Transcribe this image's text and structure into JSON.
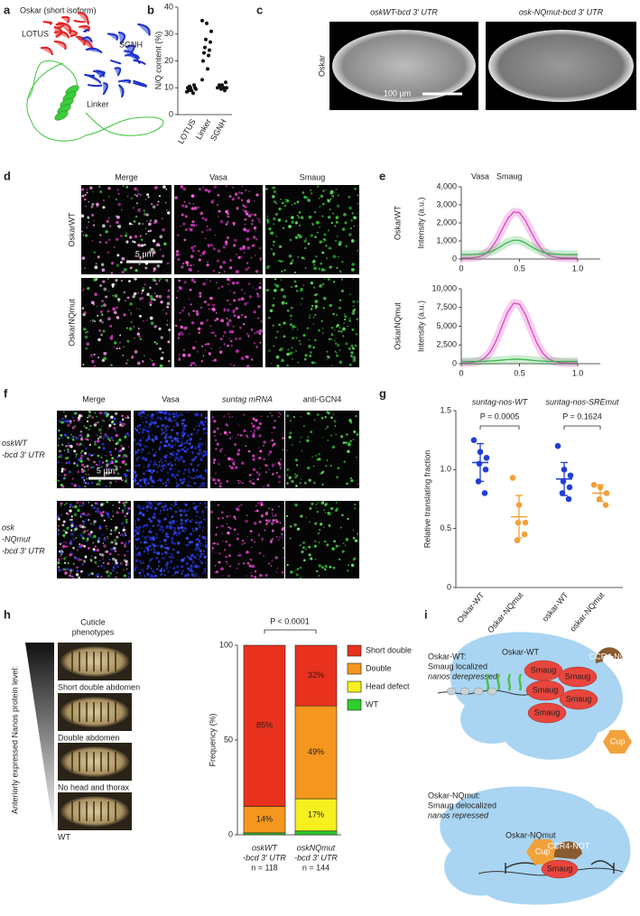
{
  "panel_labels": [
    "a",
    "b",
    "c",
    "d",
    "e",
    "f",
    "g",
    "h",
    "i"
  ],
  "panel_a": {
    "title": "Oskar (short isoform)",
    "domains": [
      "LOTUS",
      "SGNH",
      "Linker"
    ]
  },
  "panel_c": {
    "columns": [
      "oskWT-bcd 3′ UTR",
      "osk-NQmut-bcd 3′ UTR"
    ],
    "stain": "Oskar",
    "scale_bar": "100 µm"
  },
  "panel_d": {
    "columns": [
      "Merge",
      "Vasa",
      "Smaug"
    ],
    "rows": [
      "OskarWT",
      "OskarNQmut"
    ],
    "scale_bar": "5 µm"
  },
  "panel_f": {
    "columns": [
      "Merge",
      "Vasa",
      "suntag mRNA",
      "anti-GCN4"
    ],
    "rows": [
      [
        "oskWT",
        "-bcd 3′ UTR"
      ],
      [
        "osk",
        "-NQmut",
        "-bcd 3′ UTR"
      ]
    ],
    "scale_bar": "5 µm"
  },
  "panel_h": {
    "header": [
      "Cuticle",
      "phenotypes"
    ],
    "phenotypes": [
      "Short double abdomen",
      "Double abdomen",
      "No head and thorax",
      "WT"
    ],
    "gradient_label": "Anteriorly expressed Nanos protein level:"
  },
  "panel_i": {
    "wt_text": [
      "Oskar-WT:",
      "Smaug localized",
      "nanos derepressed"
    ],
    "wt_blob": "Oskar-WT",
    "wt_smaug": [
      "Smaug",
      "Smaug",
      "Smaug",
      "Smaug",
      "Smaug"
    ],
    "wt_ccr4": "CCR4-NOT",
    "wt_cup": "Cup",
    "mut_text": [
      "Oskar-NQmut:",
      "Smaug delocalized",
      "nanos repressed"
    ],
    "mut_blob": "Oskar-NQmut",
    "mut_cup": "Cup",
    "mut_ccr4": "CCR4-NOT",
    "mut_smaug": "Smaug"
  },
  "chart_data": [
    {
      "type": "strip",
      "ylabel": "N/Q content (%)",
      "categories": [
        "LOTUS",
        "Linker",
        "SGNH"
      ],
      "color": "#111111",
      "values": [
        [
          8.5,
          9,
          9.5,
          10,
          10,
          10.5,
          11,
          9,
          8,
          10
        ],
        [
          35,
          34,
          31,
          28,
          27,
          25,
          24,
          23,
          22,
          20,
          17,
          13
        ],
        [
          10,
          11,
          10,
          9.5,
          12,
          10.5,
          9,
          11,
          10
        ]
      ],
      "ylim": [
        0,
        40
      ],
      "yticks": [
        0,
        10,
        20,
        30,
        40
      ]
    },
    {
      "type": "line",
      "side_label": "OskarWT",
      "ylabel": "Intensity (a.u.)",
      "x": [
        0,
        0.05,
        0.1,
        0.15,
        0.2,
        0.25,
        0.3,
        0.35,
        0.4,
        0.45,
        0.5,
        0.55,
        0.6,
        0.65,
        0.7,
        0.75,
        0.8,
        0.85,
        0.9,
        0.95,
        1
      ],
      "series": [
        {
          "name": "Vasa",
          "color": "#e03cbf",
          "values": [
            50,
            60,
            70,
            120,
            260,
            530,
            1000,
            1630,
            2240,
            2610,
            2570,
            2130,
            1500,
            900,
            460,
            220,
            110,
            70,
            50,
            50,
            50
          ]
        },
        {
          "name": "Smaug",
          "color": "#36b34a",
          "values": [
            250,
            250,
            260,
            270,
            310,
            400,
            540,
            740,
            930,
            1040,
            1030,
            890,
            690,
            510,
            380,
            300,
            270,
            260,
            250,
            250,
            250
          ]
        }
      ],
      "xlim": [
        0,
        1
      ],
      "xticks": [
        0,
        0.5,
        {
          "value": 1,
          "label": "1.0"
        }
      ],
      "ylim": [
        0,
        4000
      ],
      "yticks": [
        0,
        {
          "value": 1000,
          "label": "1,000"
        },
        {
          "value": 2000,
          "label": "2,000"
        },
        {
          "value": 3000,
          "label": "3,000"
        },
        {
          "value": 4000,
          "label": "4,000"
        }
      ]
    },
    {
      "type": "line",
      "side_label": "OskarNQmut",
      "ylabel": "Intensity (a.u.)",
      "x": [
        0,
        0.05,
        0.1,
        0.15,
        0.2,
        0.25,
        0.3,
        0.35,
        0.4,
        0.45,
        0.5,
        0.55,
        0.6,
        0.65,
        0.7,
        0.75,
        0.8,
        0.85,
        0.9,
        0.95,
        1
      ],
      "series": [
        {
          "name": "Vasa",
          "color": "#e03cbf",
          "values": [
            100,
            120,
            170,
            330,
            740,
            1610,
            3070,
            5020,
            6940,
            8090,
            7950,
            6590,
            4600,
            2730,
            1390,
            630,
            290,
            150,
            110,
            100,
            100
          ]
        },
        {
          "name": "Smaug",
          "color": "#36b34a",
          "values": [
            300,
            300,
            300,
            310,
            320,
            360,
            410,
            480,
            550,
            600,
            590,
            540,
            470,
            400,
            350,
            320,
            310,
            300,
            300,
            300,
            300
          ]
        }
      ],
      "xlim": [
        0,
        1
      ],
      "xticks": [
        0,
        0.5,
        {
          "value": 1,
          "label": "1.0"
        }
      ],
      "ylim": [
        0,
        10000
      ],
      "yticks": [
        0,
        {
          "value": 2500,
          "label": "2,500"
        },
        {
          "value": 5000,
          "label": "5,000"
        },
        {
          "value": 7500,
          "label": "7,500"
        },
        {
          "value": 10000,
          "label": "10,000"
        }
      ]
    },
    {
      "type": "strip_mean",
      "ylabel": "Relative translating fraction",
      "groups": [
        "suntag-nos-WT",
        "suntag-nos-SREmut"
      ],
      "p_values": [
        "P = 0.0005",
        "P = 0.1624"
      ],
      "categories": [
        "Oskar-WT",
        "Oskar-NQmut",
        "oskar-WT",
        "oskar-NQmut"
      ],
      "colors": [
        "#1f3fd6",
        "#f2a23a",
        "#1f3fd6",
        "#f2a23a"
      ],
      "values": [
        [
          1.25,
          1.15,
          1.1,
          1.05,
          1.0,
          0.9,
          0.8
        ],
        [
          0.93,
          0.7,
          0.55,
          0.55,
          0.45,
          0.4
        ],
        [
          1.2,
          1.0,
          0.95,
          0.9,
          0.85,
          0.8,
          0.75
        ],
        [
          0.87,
          0.85,
          0.8,
          0.75,
          0.7
        ]
      ],
      "means": [
        1.06,
        0.6,
        0.92,
        0.8
      ],
      "sd": [
        0.16,
        0.18,
        0.14,
        0.07
      ],
      "ylim": [
        0,
        1.5
      ],
      "yticks": [
        0,
        0.5,
        {
          "value": 1,
          "label": "1.0"
        },
        1.5
      ]
    },
    {
      "type": "stacked_bar",
      "ylabel": "Frequency (%)",
      "annotation": "P < 0.0001",
      "categories": [
        [
          "oskWT",
          "-bcd 3′ UTR",
          "n = 118"
        ],
        [
          "oskNQmut",
          "-bcd 3′ UTR",
          "n = 144"
        ]
      ],
      "series": [
        {
          "name": "Short double",
          "color": "#e8321e",
          "values": [
            85,
            32
          ],
          "value_labels": [
            "85%",
            "32%"
          ]
        },
        {
          "name": "Double",
          "color": "#f5961e",
          "values": [
            14,
            49
          ],
          "value_labels": [
            "14%",
            "49%"
          ]
        },
        {
          "name": "Head defect",
          "color": "#f5f01e",
          "values": [
            0,
            17
          ],
          "value_labels": [
            null,
            "17%"
          ]
        },
        {
          "name": "WT",
          "color": "#2ecc2e",
          "values": [
            1,
            2
          ],
          "value_labels": [
            null,
            null
          ]
        }
      ],
      "ylim": [
        0,
        100
      ],
      "yticks": [
        0,
        50,
        100
      ]
    }
  ]
}
